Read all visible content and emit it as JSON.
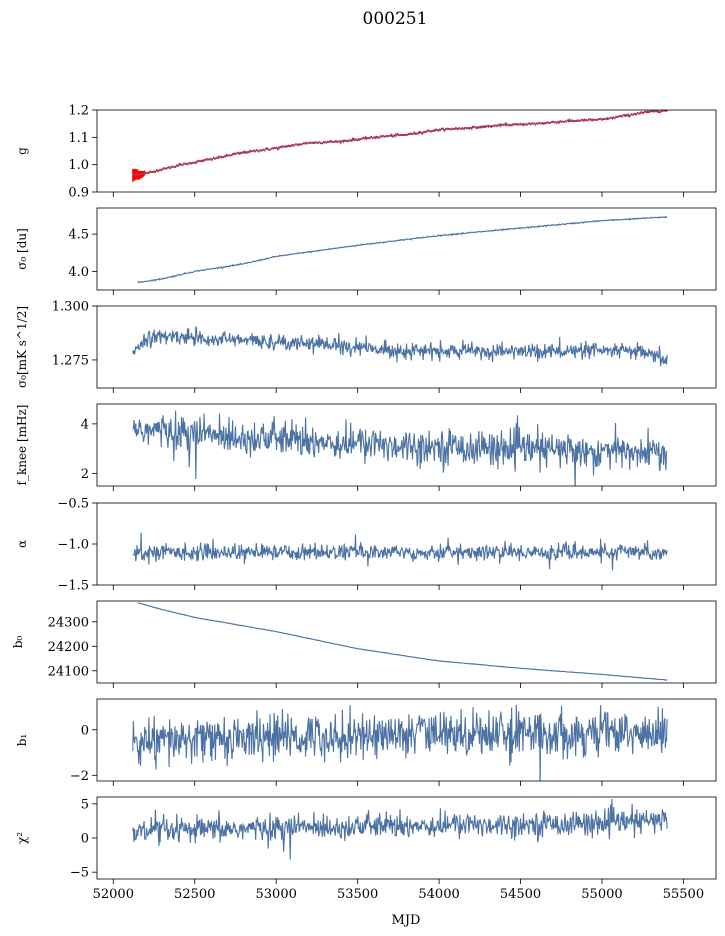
{
  "chart_data": {
    "type": "line",
    "title": "000251",
    "xlabel": "MJD",
    "xlim": [
      51900,
      55700
    ],
    "xticks": [
      "52000",
      "52500",
      "53000",
      "53500",
      "54000",
      "54500",
      "55000",
      "55500"
    ],
    "series_color": "#4c72a4",
    "overlay_color": "#ff0000",
    "panels": [
      {
        "ylabel": "g",
        "ylim": [
          0.9,
          1.2
        ],
        "yticks": [
          "0.9",
          "1.0",
          "1.1",
          "1.2"
        ],
        "kind": "trend",
        "x": [
          52120,
          52200,
          52400,
          52600,
          52800,
          53000,
          53200,
          53400,
          53600,
          53800,
          54000,
          54200,
          54400,
          54600,
          54800,
          55000,
          55200,
          55300,
          55400
        ],
        "y": [
          0.962,
          0.968,
          0.998,
          1.02,
          1.045,
          1.06,
          1.08,
          1.085,
          1.1,
          1.11,
          1.128,
          1.135,
          1.145,
          1.15,
          1.16,
          1.165,
          1.185,
          1.195,
          1.198
        ],
        "noise": 0.002,
        "overlay_errorbars": true
      },
      {
        "ylabel": "σ₀ [du]",
        "ylim": [
          3.75,
          4.85
        ],
        "yticks": [
          "4.0",
          "4.5"
        ],
        "kind": "trend",
        "x": [
          52150,
          52300,
          52500,
          52800,
          53000,
          53500,
          54000,
          54500,
          55000,
          55400
        ],
        "y": [
          3.85,
          3.9,
          4.0,
          4.1,
          4.2,
          4.35,
          4.48,
          4.58,
          4.68,
          4.73
        ],
        "noise": 0.004
      },
      {
        "ylabel": "σ₀[mK s^1/2]",
        "ylim": [
          1.262,
          1.3
        ],
        "yticks": [
          "1.275",
          "1.300"
        ],
        "kind": "noise",
        "x": [
          52120,
          52200,
          52400,
          52800,
          53200,
          53600,
          54000,
          54400,
          54800,
          55200,
          55400
        ],
        "y": [
          1.279,
          1.285,
          1.286,
          1.284,
          1.283,
          1.28,
          1.279,
          1.279,
          1.279,
          1.279,
          1.275
        ],
        "noise": 0.0018
      },
      {
        "ylabel": "f_knee [mHz]",
        "ylim": [
          1.5,
          4.8
        ],
        "yticks": [
          "2",
          "4"
        ],
        "kind": "noise",
        "x": [
          52120,
          52500,
          53000,
          53500,
          54000,
          54500,
          55000,
          55400
        ],
        "y": [
          3.8,
          3.6,
          3.4,
          3.2,
          3.1,
          3.0,
          2.9,
          2.8
        ],
        "noise": 0.35
      },
      {
        "ylabel": "α",
        "ylim": [
          -1.5,
          -0.5
        ],
        "yticks": [
          "−1.5",
          "−1.0",
          "−0.5"
        ],
        "kind": "noise",
        "x": [
          52120,
          53000,
          54000,
          55000,
          55400
        ],
        "y": [
          -1.1,
          -1.1,
          -1.1,
          -1.1,
          -1.1
        ],
        "noise": 0.05
      },
      {
        "ylabel": "b₀",
        "ylim": [
          24050,
          24385
        ],
        "yticks": [
          "24100",
          "24200",
          "24300"
        ],
        "kind": "trend",
        "x": [
          52150,
          52300,
          52500,
          53000,
          53500,
          54000,
          54500,
          55000,
          55400
        ],
        "y": [
          24378,
          24350,
          24318,
          24260,
          24190,
          24140,
          24110,
          24085,
          24062
        ],
        "noise": 0.5
      },
      {
        "ylabel": "b₁",
        "ylim": [
          -2.25,
          1.35
        ],
        "yticks": [
          "−2",
          "0"
        ],
        "kind": "noise",
        "x": [
          52120,
          52600,
          53200,
          53800,
          54400,
          55000,
          55400
        ],
        "y": [
          -0.6,
          -0.4,
          -0.3,
          -0.2,
          -0.1,
          -0.15,
          -0.2
        ],
        "noise": 0.5
      },
      {
        "ylabel": "χ²",
        "ylim": [
          -6,
          6
        ],
        "yticks": [
          "−5",
          "0",
          "5"
        ],
        "kind": "noise",
        "x": [
          52120,
          52600,
          53200,
          53800,
          54400,
          55000,
          55400
        ],
        "y": [
          0.8,
          1.2,
          1.6,
          1.8,
          2.0,
          2.2,
          2.6
        ],
        "noise": 0.9
      }
    ]
  }
}
